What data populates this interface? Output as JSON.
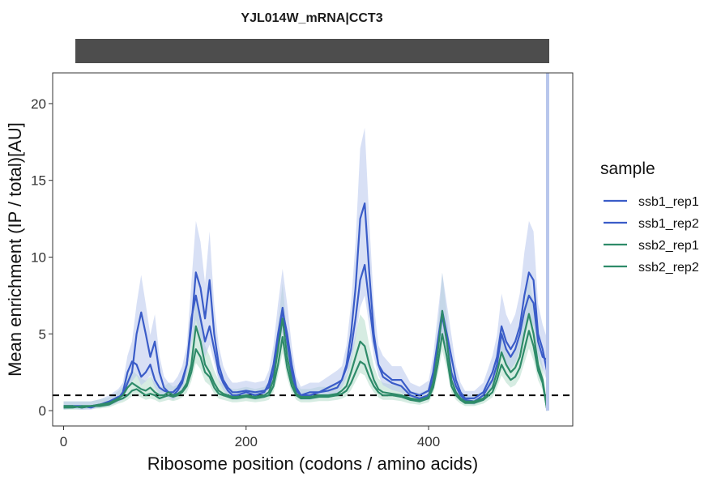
{
  "chart_data": {
    "type": "line",
    "title": "YJL014W_mRNA|CCT3",
    "xlabel": "Ribosome position (codons / amino acids)",
    "ylabel": "Mean enrichment (IP / total)[AU]",
    "xlim": [
      -12,
      558
    ],
    "ylim": [
      -1,
      22
    ],
    "x_ticks": [
      0,
      200,
      400
    ],
    "y_ticks": [
      0,
      5,
      10,
      15,
      20
    ],
    "reference_line": {
      "y": 1,
      "style": "dashed",
      "color": "#000000"
    },
    "legend": {
      "title": "sample",
      "position": "right"
    },
    "grid": false,
    "colors": {
      "ssb1": "#3a5cc8",
      "ssb2": "#2e8b69",
      "ssb1_band": "#b8c6ec",
      "ssb2_band": "#b5dccb",
      "strip": "#4d4d4d"
    },
    "x": [
      0,
      10,
      20,
      30,
      40,
      50,
      60,
      65,
      70,
      75,
      80,
      85,
      90,
      95,
      100,
      105,
      110,
      115,
      120,
      125,
      130,
      135,
      140,
      145,
      150,
      155,
      160,
      165,
      170,
      175,
      180,
      185,
      190,
      200,
      210,
      220,
      225,
      230,
      235,
      240,
      245,
      250,
      255,
      260,
      270,
      280,
      290,
      300,
      305,
      310,
      315,
      320,
      325,
      330,
      335,
      340,
      345,
      350,
      360,
      370,
      380,
      390,
      400,
      405,
      410,
      415,
      420,
      425,
      430,
      435,
      440,
      450,
      460,
      470,
      475,
      480,
      485,
      490,
      495,
      500,
      505,
      510,
      515,
      520,
      525,
      530
    ],
    "series": [
      {
        "name": "ssb1_rep1",
        "group": "ssb1",
        "values": [
          0.3,
          0.3,
          0.2,
          0.3,
          0.4,
          0.5,
          0.8,
          1.2,
          2.5,
          3.2,
          3.0,
          2.2,
          2.5,
          3.0,
          2.0,
          1.5,
          1.3,
          1.2,
          1.2,
          1.5,
          2.0,
          3.0,
          5.5,
          9.0,
          8.0,
          6.0,
          8.5,
          5.0,
          3.0,
          2.0,
          1.5,
          1.2,
          1.2,
          1.3,
          1.2,
          1.3,
          1.5,
          2.5,
          4.5,
          6.5,
          5.0,
          3.0,
          1.5,
          1.0,
          1.2,
          1.2,
          1.3,
          1.5,
          2.0,
          3.0,
          5.0,
          8.0,
          12.5,
          13.5,
          9.0,
          5.0,
          3.0,
          2.5,
          2.0,
          2.0,
          1.2,
          1.0,
          1.3,
          2.5,
          4.5,
          6.5,
          5.0,
          3.5,
          2.0,
          1.2,
          0.8,
          0.8,
          1.2,
          2.5,
          3.5,
          5.5,
          4.5,
          4.0,
          4.5,
          5.5,
          7.5,
          9.0,
          8.5,
          5.0,
          4.0,
          2.5
        ]
      },
      {
        "name": "ssb1_rep2",
        "group": "ssb1",
        "values": [
          0.2,
          0.3,
          0.3,
          0.2,
          0.4,
          0.6,
          0.9,
          1.0,
          1.8,
          2.5,
          5.0,
          6.4,
          5.0,
          3.5,
          4.5,
          2.5,
          1.5,
          1.2,
          1.0,
          1.3,
          1.8,
          3.0,
          6.0,
          7.5,
          6.0,
          4.5,
          5.5,
          4.0,
          2.5,
          1.8,
          1.3,
          1.0,
          1.0,
          1.2,
          1.0,
          1.2,
          1.8,
          3.0,
          5.0,
          6.7,
          4.5,
          2.5,
          1.3,
          1.0,
          1.0,
          1.2,
          1.5,
          1.8,
          2.0,
          2.8,
          4.0,
          6.0,
          8.5,
          9.5,
          7.0,
          4.5,
          3.0,
          2.2,
          1.8,
          1.6,
          1.0,
          0.8,
          1.0,
          2.0,
          4.0,
          6.2,
          4.5,
          2.5,
          1.6,
          1.0,
          0.7,
          0.6,
          1.0,
          2.0,
          3.0,
          5.0,
          4.0,
          3.5,
          4.0,
          5.0,
          6.5,
          7.5,
          7.0,
          4.5,
          3.5,
          3.3
        ]
      },
      {
        "name": "ssb2_rep1",
        "group": "ssb2",
        "values": [
          0.2,
          0.2,
          0.3,
          0.3,
          0.4,
          0.5,
          0.8,
          1.0,
          1.5,
          1.8,
          1.6,
          1.4,
          1.3,
          1.5,
          1.2,
          1.0,
          1.0,
          1.2,
          1.0,
          1.1,
          1.3,
          1.8,
          3.0,
          5.5,
          4.5,
          3.0,
          2.5,
          1.8,
          1.3,
          1.1,
          1.0,
          0.9,
          0.9,
          1.0,
          0.9,
          1.0,
          1.2,
          2.0,
          4.0,
          6.0,
          3.5,
          2.0,
          1.1,
          0.9,
          0.9,
          1.0,
          1.0,
          1.1,
          1.3,
          1.6,
          2.5,
          3.5,
          4.5,
          4.2,
          3.0,
          2.0,
          1.4,
          1.2,
          1.1,
          1.0,
          0.8,
          0.7,
          0.9,
          1.8,
          3.8,
          6.5,
          4.5,
          2.0,
          1.2,
          0.8,
          0.6,
          0.6,
          0.8,
          1.5,
          2.5,
          3.8,
          3.0,
          2.5,
          2.8,
          3.5,
          5.0,
          6.3,
          5.0,
          3.0,
          2.0,
          0.0
        ]
      },
      {
        "name": "ssb2_rep2",
        "group": "ssb2",
        "values": [
          0.3,
          0.3,
          0.2,
          0.3,
          0.3,
          0.4,
          0.7,
          0.8,
          1.0,
          1.3,
          1.4,
          1.2,
          1.0,
          1.1,
          1.0,
          0.8,
          0.9,
          1.0,
          0.9,
          1.0,
          1.2,
          1.6,
          2.5,
          4.0,
          3.5,
          2.5,
          2.2,
          1.5,
          1.1,
          1.0,
          0.9,
          0.8,
          0.8,
          0.9,
          0.8,
          0.9,
          1.0,
          1.6,
          3.0,
          4.8,
          2.8,
          1.6,
          1.0,
          0.8,
          0.8,
          0.9,
          0.9,
          1.0,
          1.1,
          1.3,
          1.8,
          2.5,
          3.2,
          3.0,
          2.2,
          1.6,
          1.2,
          1.0,
          1.0,
          0.9,
          0.7,
          0.6,
          0.8,
          1.5,
          3.0,
          5.0,
          3.5,
          1.6,
          1.0,
          0.7,
          0.5,
          0.5,
          0.7,
          1.2,
          2.0,
          3.0,
          2.4,
          2.0,
          2.2,
          2.8,
          4.0,
          5.2,
          4.2,
          2.6,
          1.8,
          0.0
        ]
      }
    ]
  }
}
